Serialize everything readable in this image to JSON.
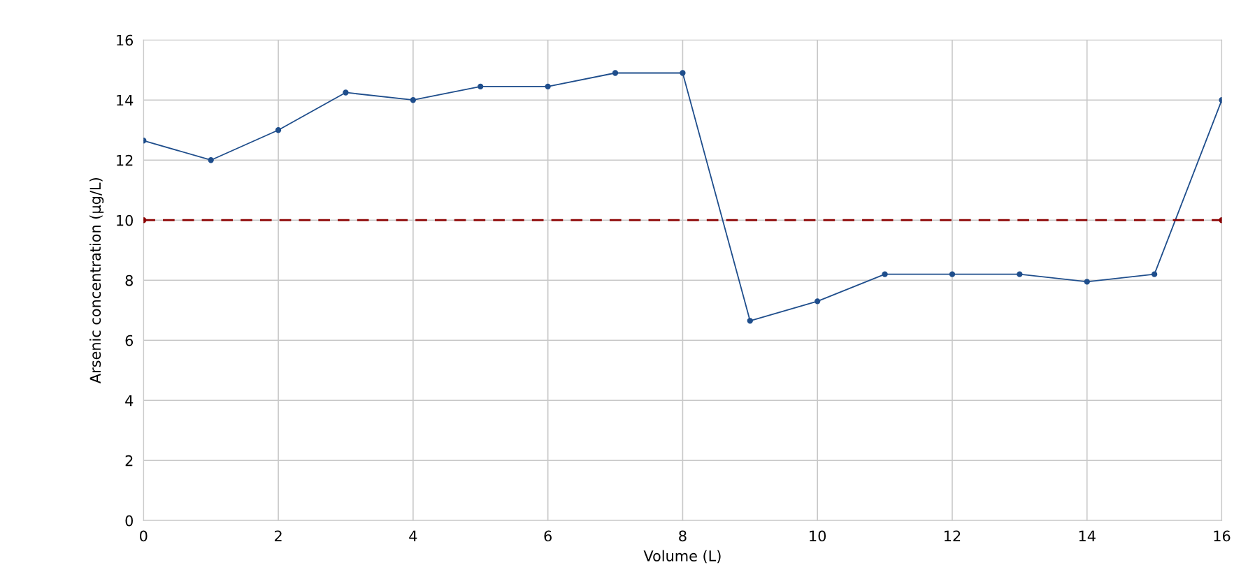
{
  "chart_data": {
    "type": "line",
    "xlabel": "Volume (L)",
    "ylabel": "Arsenic concentration (µg/L)",
    "x": [
      0,
      1,
      2,
      3,
      4,
      5,
      6,
      7,
      8,
      9,
      10,
      11,
      12,
      13,
      14,
      15,
      16
    ],
    "series": [
      {
        "color": "#1f4e8c",
        "values": [
          12.65,
          12.0,
          13.0,
          14.25,
          14.0,
          14.45,
          14.45,
          14.9,
          14.9,
          6.65,
          7.3,
          8.2,
          8.2,
          8.2,
          7.95,
          8.2,
          14.0
        ],
        "line_style": "solid"
      },
      {
        "color": "#8b0000",
        "x": [
          0,
          16
        ],
        "values": [
          10,
          10
        ],
        "line_style": "dashed"
      }
    ],
    "xlim": [
      0,
      16
    ],
    "xticks": [
      0,
      2,
      4,
      6,
      8,
      10,
      12,
      14,
      16
    ],
    "ylim": [
      0,
      16
    ],
    "yticks": [
      0,
      2,
      4,
      6,
      8,
      10,
      12,
      14,
      16
    ],
    "grid": true,
    "marker": "circle"
  }
}
